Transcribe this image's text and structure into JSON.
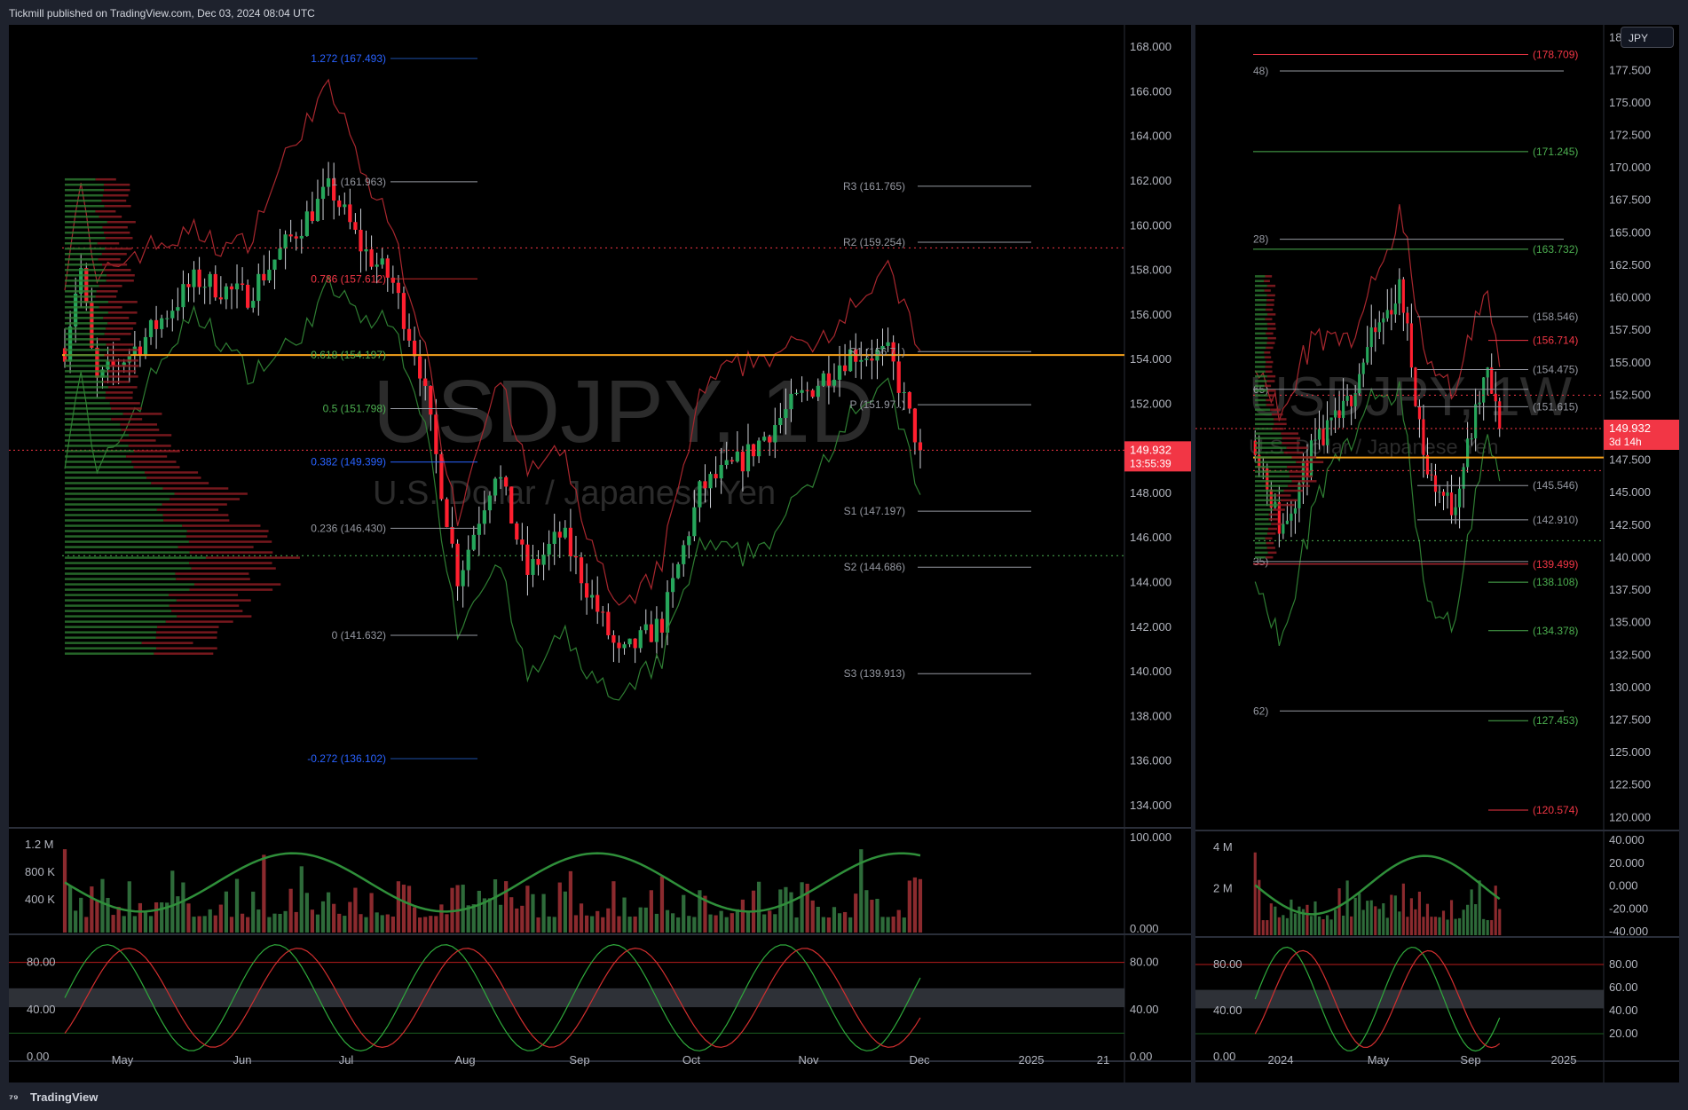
{
  "header": {
    "published": "Tickmill published on TradingView.com, Dec 03, 2024 08:04 UTC"
  },
  "footer": {
    "brand": "TradingView",
    "logo_icon": "tradingview-logo-icon"
  },
  "colors": {
    "up": "#089981",
    "down": "#f23645",
    "accent": "#f7a21b",
    "price_tag": "#f23645"
  },
  "left_chart": {
    "watermark_symbol": "USDJPY, 1D",
    "watermark_name": "U.S. Dollar / Japanese Yen",
    "last_price": "149.932",
    "countdown": "13:55:39",
    "price_ticks": [
      "168.000",
      "166.000",
      "164.000",
      "162.000",
      "160.000",
      "158.000",
      "156.000",
      "154.000",
      "152.000",
      "150.000",
      "148.000",
      "146.000",
      "144.000",
      "142.000",
      "140.000",
      "138.000",
      "136.000",
      "134.000"
    ],
    "time_ticks": [
      "May",
      "Jun",
      "Jul",
      "Aug",
      "Sep",
      "Oct",
      "Nov",
      "Dec",
      "2025",
      "21"
    ],
    "fib_labels": [
      "1.272 (167.493)",
      "1 (161.963)",
      "0.786 (157.612)",
      "0.618 (154.197)",
      "0.5 (151.798)",
      "0.382 (149.399)",
      "0.236 (146.430)",
      "0 (141.632)",
      "-0.272 (136.102)"
    ],
    "pivot_labels": [
      "R3 (161.765)",
      "R2 (159.254)",
      "R1 (156.7..)",
      "P (151.97..)",
      "S1 (147.197)",
      "S2 (144.686)",
      "S3 (139.913)"
    ],
    "volume_ticks": [
      "1.2 M",
      "800 K",
      "400 K"
    ],
    "osc1_ticks": [
      "100.000",
      "0.000"
    ],
    "stoch_ticks": [
      "80.00",
      "40.00",
      "0.00"
    ],
    "stoch_right_ticks": [
      "80.00",
      "40.00",
      "0.00"
    ]
  },
  "right_chart": {
    "watermark_symbol": "USDJPY, 1W",
    "watermark_name": "U.S. Dollar / Japanese Yen",
    "symbol_button": "JPY",
    "last_price": "149.932",
    "countdown": "3d 14h",
    "price_ticks": [
      "180.000",
      "177.500",
      "175.000",
      "172.500",
      "170.000",
      "167.500",
      "165.000",
      "162.500",
      "160.000",
      "157.500",
      "155.000",
      "152.500",
      "150.000",
      "147.500",
      "145.000",
      "142.500",
      "140.000",
      "137.500",
      "135.000",
      "132.500",
      "130.000",
      "127.500",
      "125.000",
      "122.500",
      "120.000"
    ],
    "time_ticks": [
      "2024",
      "May",
      "Sep",
      "2025"
    ],
    "level_labels": [
      "(178.709)",
      "(171.245)",
      "(163.732)",
      "(158.546)",
      "(156.714)",
      "(154.475)",
      "(151.615)",
      "(145.546)",
      "(142.910)",
      "(139.499)",
      "(138.108)",
      "(134.378)",
      "(127.453)",
      "(120.574)"
    ],
    "fib_fragments": [
      "48)",
      "28)",
      "65)",
      "35)",
      "62)"
    ],
    "volume_ticks": [
      "4 M",
      "2 M"
    ],
    "osc1_ticks": [
      "40.000",
      "20.000",
      "0.000",
      "-20.000",
      "-40.000"
    ],
    "stoch_ticks": [
      "80.00",
      "40.00",
      "0.00"
    ],
    "stoch_right_ticks": [
      "80.00",
      "60.00",
      "40.00",
      "20.00"
    ]
  },
  "chart_data": [
    {
      "type": "candlestick",
      "title": "USDJPY, 1D",
      "subtitle": "U.S. Dollar / Japanese Yen",
      "x_range": [
        "Apr 2024",
        "Jan 2025"
      ],
      "ylim": [
        133,
        169
      ],
      "last": 149.932,
      "close_path_approx": [
        {
          "date": "2024-04-25",
          "value": 154.5
        },
        {
          "date": "2024-04-29",
          "value": 158.3
        },
        {
          "date": "2024-05-03",
          "value": 152.9
        },
        {
          "date": "2024-05-15",
          "value": 154.8
        },
        {
          "date": "2024-05-29",
          "value": 157.6
        },
        {
          "date": "2024-06-11",
          "value": 156.8
        },
        {
          "date": "2024-06-26",
          "value": 160.2
        },
        {
          "date": "2024-07-03",
          "value": 161.7
        },
        {
          "date": "2024-07-11",
          "value": 159.0
        },
        {
          "date": "2024-07-19",
          "value": 157.5
        },
        {
          "date": "2024-07-26",
          "value": 153.8
        },
        {
          "date": "2024-08-05",
          "value": 144.2
        },
        {
          "date": "2024-08-15",
          "value": 149.2
        },
        {
          "date": "2024-08-23",
          "value": 144.4
        },
        {
          "date": "2024-09-01",
          "value": 146.2
        },
        {
          "date": "2024-09-16",
          "value": 140.6
        },
        {
          "date": "2024-09-27",
          "value": 142.2
        },
        {
          "date": "2024-10-07",
          "value": 148.2
        },
        {
          "date": "2024-10-18",
          "value": 149.5
        },
        {
          "date": "2024-10-31",
          "value": 152.0
        },
        {
          "date": "2024-11-15",
          "value": 154.3
        },
        {
          "date": "2024-11-25",
          "value": 154.2
        },
        {
          "date": "2024-12-03",
          "value": 149.9
        }
      ]
    },
    {
      "type": "candlestick",
      "title": "USDJPY, 1W",
      "subtitle": "U.S. Dollar / Japanese Yen",
      "x_range": [
        "Oct 2023",
        "Jan 2025"
      ],
      "ylim": [
        119,
        181
      ],
      "last": 149.932,
      "close_path_approx": [
        {
          "date": "2023-10-30",
          "value": 149.0
        },
        {
          "date": "2023-12-11",
          "value": 142.0
        },
        {
          "date": "2024-01-29",
          "value": 148.0
        },
        {
          "date": "2024-03-25",
          "value": 151.3
        },
        {
          "date": "2024-04-29",
          "value": 156.0
        },
        {
          "date": "2024-06-24",
          "value": 160.8
        },
        {
          "date": "2024-08-05",
          "value": 146.5
        },
        {
          "date": "2024-09-16",
          "value": 143.8
        },
        {
          "date": "2024-11-11",
          "value": 154.3
        },
        {
          "date": "2024-12-02",
          "value": 149.9
        }
      ]
    }
  ]
}
